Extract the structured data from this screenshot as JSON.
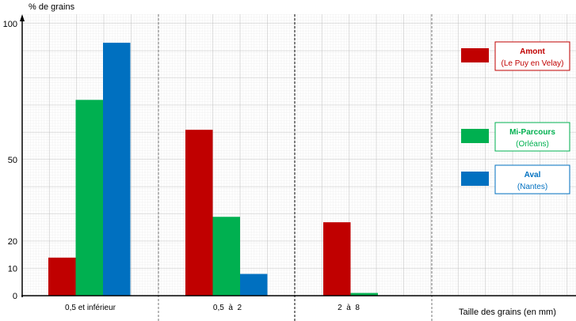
{
  "chart_data": {
    "type": "bar",
    "ylabel": "% de grains",
    "xlabel": "Taille des grains (en mm)",
    "categories": [
      "0,5 et inférieur",
      "0,5  à  2",
      "2  à  8"
    ],
    "yticks": [
      0,
      10,
      20,
      50,
      100
    ],
    "ylim": [
      0,
      100
    ],
    "grid": true,
    "legend_placement": "right",
    "series": [
      {
        "name": "Amont",
        "subtitle": "(Le Puy en Velay)",
        "color": "#c00000",
        "values": [
          14,
          61,
          27
        ]
      },
      {
        "name": "Mi-Parcours",
        "subtitle": "(Orléans)",
        "color": "#00b050",
        "values": [
          72,
          29,
          1
        ]
      },
      {
        "name": "Aval",
        "subtitle": "(Nantes)",
        "color": "#0070c0",
        "values": [
          93,
          8,
          null
        ]
      }
    ]
  }
}
